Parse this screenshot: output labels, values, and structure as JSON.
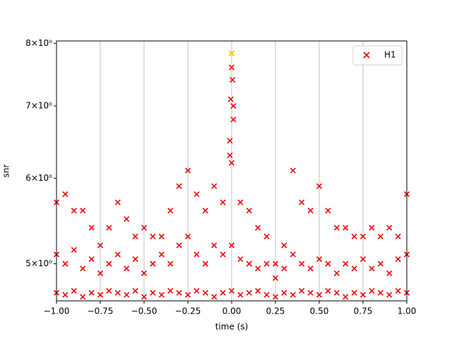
{
  "chart_data": {
    "type": "scatter",
    "xlabel": "time (s)",
    "ylabel": "snr",
    "log_y": true,
    "grid": "x",
    "legend": "upper right",
    "xlim": [
      -1.0,
      1.0
    ],
    "xticks": [
      {
        "value": -1.0,
        "label": "−1.00"
      },
      {
        "value": -0.75,
        "label": "−0.75"
      },
      {
        "value": -0.5,
        "label": "−0.50"
      },
      {
        "value": -0.25,
        "label": "−0.25"
      },
      {
        "value": 0.0,
        "label": "0.00"
      },
      {
        "value": 0.25,
        "label": "0.25"
      },
      {
        "value": 0.5,
        "label": "0.50"
      },
      {
        "value": 0.75,
        "label": "0.75"
      },
      {
        "value": 1.0,
        "label": "1.00"
      }
    ],
    "ylim": [
      4.62,
      8.04
    ],
    "yticks": [
      {
        "value": 5,
        "label": "5×10⁰"
      },
      {
        "value": 6,
        "label": "6×10⁰"
      },
      {
        "value": 7,
        "label": "7×10⁰"
      },
      {
        "value": 8,
        "label": "8×10⁰"
      }
    ],
    "series": [
      {
        "name": "H1",
        "color": "#ee0000",
        "x": [
          -1.0,
          -1.0,
          -1.0,
          -0.95,
          -0.95,
          -0.95,
          -0.9,
          -0.9,
          -0.9,
          -0.85,
          -0.85,
          -0.85,
          -0.8,
          -0.8,
          -0.8,
          -0.75,
          -0.75,
          -0.75,
          -0.7,
          -0.7,
          -0.7,
          -0.65,
          -0.65,
          -0.65,
          -0.6,
          -0.6,
          -0.6,
          -0.55,
          -0.55,
          -0.55,
          -0.5,
          -0.5,
          -0.5,
          -0.45,
          -0.45,
          -0.45,
          -0.4,
          -0.4,
          -0.4,
          -0.35,
          -0.35,
          -0.35,
          -0.3,
          -0.3,
          -0.3,
          -0.25,
          -0.25,
          -0.25,
          -0.2,
          -0.2,
          -0.2,
          -0.15,
          -0.15,
          -0.15,
          -0.1,
          -0.1,
          -0.1,
          -0.05,
          -0.05,
          -0.05,
          0.0,
          0.0,
          0.0,
          0.05,
          0.05,
          0.05,
          0.1,
          0.1,
          0.1,
          0.15,
          0.15,
          0.15,
          0.2,
          0.2,
          0.2,
          0.25,
          0.25,
          0.25,
          0.3,
          0.3,
          0.3,
          0.35,
          0.35,
          0.35,
          0.4,
          0.4,
          0.4,
          0.45,
          0.45,
          0.45,
          0.5,
          0.5,
          0.5,
          0.55,
          0.55,
          0.55,
          0.6,
          0.6,
          0.6,
          0.65,
          0.65,
          0.65,
          0.7,
          0.7,
          0.7,
          0.75,
          0.75,
          0.75,
          0.8,
          0.8,
          0.8,
          0.85,
          0.85,
          0.85,
          0.9,
          0.9,
          0.9,
          0.95,
          0.95,
          0.95,
          1.0,
          1.0,
          1.0,
          -0.01,
          0.01,
          -0.005,
          0.005,
          0.0,
          -0.01,
          0.01,
          0.0
        ],
        "values": [
          5.7,
          5.1,
          4.7,
          5.8,
          5.0,
          4.68,
          5.6,
          5.15,
          4.72,
          5.6,
          4.95,
          4.66,
          5.4,
          5.05,
          4.7,
          5.2,
          4.9,
          4.68,
          5.4,
          5.0,
          4.72,
          5.7,
          5.1,
          4.7,
          5.5,
          4.95,
          4.68,
          5.3,
          5.05,
          4.72,
          5.4,
          4.9,
          4.66,
          5.3,
          5.0,
          4.7,
          5.3,
          5.1,
          4.68,
          5.6,
          5.0,
          4.72,
          5.9,
          5.2,
          4.7,
          6.1,
          5.3,
          4.68,
          5.8,
          5.1,
          4.72,
          5.6,
          5.0,
          4.7,
          5.9,
          5.2,
          4.66,
          5.7,
          5.1,
          4.7,
          6.2,
          5.2,
          4.72,
          5.7,
          5.05,
          4.68,
          5.6,
          5.0,
          4.7,
          5.4,
          4.95,
          4.72,
          5.3,
          5.0,
          4.68,
          5.0,
          4.85,
          4.66,
          5.2,
          4.95,
          4.7,
          6.1,
          5.1,
          4.68,
          5.7,
          5.0,
          4.72,
          5.6,
          4.95,
          4.7,
          5.9,
          5.05,
          4.68,
          5.6,
          5.0,
          4.72,
          5.4,
          4.9,
          4.7,
          5.4,
          5.0,
          4.66,
          5.3,
          4.95,
          4.7,
          5.3,
          5.05,
          4.68,
          5.4,
          4.95,
          4.72,
          5.3,
          5.0,
          4.7,
          5.4,
          4.9,
          4.68,
          5.3,
          5.05,
          4.72,
          5.8,
          5.1,
          4.7,
          6.5,
          6.8,
          7.1,
          7.4,
          7.6,
          6.3,
          7.0,
          7.83
        ]
      }
    ],
    "highlight_point": {
      "x": 0.0,
      "y": 7.83,
      "color": "#ffd700"
    }
  }
}
